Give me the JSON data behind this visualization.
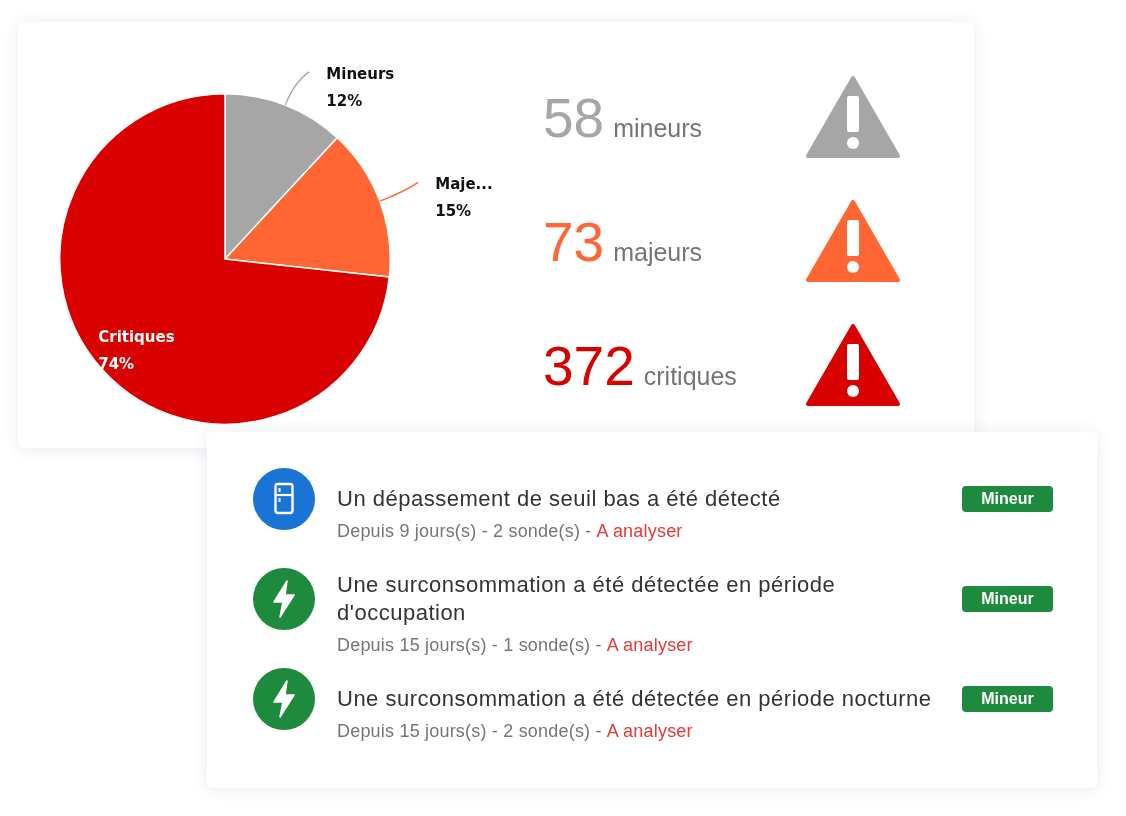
{
  "chart_data": [
    {
      "type": "pie",
      "categories": [
        "Mineurs",
        "Maje...",
        "Critiques"
      ],
      "values": [
        12,
        15,
        74
      ],
      "value_labels": [
        "12%",
        "15%",
        "74%"
      ],
      "colors": [
        "#a6a6a6",
        "#ff6633",
        "#d90000"
      ]
    },
    {
      "type": "other",
      "annotations": [
        "58",
        "mineurs",
        "73",
        "majeurs",
        "372",
        "critiques"
      ]
    },
    {
      "type": "other",
      "annotations": [
        "Un dépassement de seuil bas a été détecté",
        "Depuis 9 jours(s) - 2 sonde(s) -",
        "A analyser",
        "Mineur",
        "Une surconsommation a été détectée en période d'occupation",
        "Depuis 15 jours(s) - 1 sonde(s) -",
        "A analyser",
        "Mineur",
        "Une surconsommation a été détectée en période nocturne",
        "Depuis 15 jours(s) - 2 sonde(s) -",
        "A analyser",
        "Mineur"
      ]
    }
  ]
}
